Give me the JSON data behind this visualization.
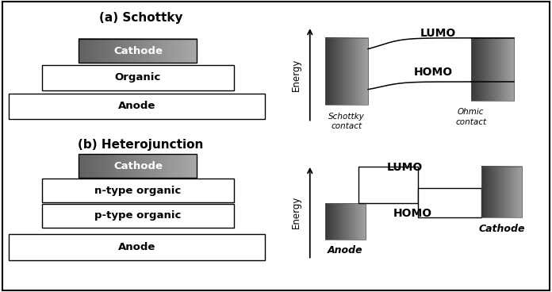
{
  "bg_color": "#ffffff",
  "schottky_title": "(a) Schottky",
  "hetero_title": "(b) Heterojunction",
  "cathode_label": "Cathode",
  "organic_label": "Organic",
  "anode_label": "Anode",
  "ntype_label": "n-type organic",
  "ptype_label": "p-type organic",
  "lumo_label": "LUMO",
  "homo_label": "HOMO",
  "energy_label": "Energy",
  "schottky_contact": "Schottky\ncontact",
  "ohmic_contact": "Ohmic\ncontact",
  "anode_italic": "Anode",
  "cathode_italic": "Cathode",
  "figsize": [
    6.96,
    3.68
  ],
  "dpi": 100
}
